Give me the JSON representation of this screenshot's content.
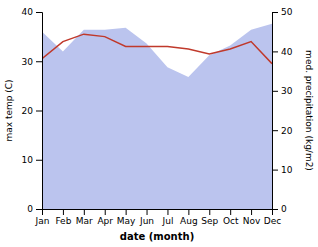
{
  "chart_data": {
    "type": "line",
    "categories": [
      "Jan",
      "Feb",
      "Mar",
      "Apr",
      "May",
      "Jun",
      "Jul",
      "Aug",
      "Sep",
      "Oct",
      "Nov",
      "Dec"
    ],
    "series": [
      {
        "type": "area",
        "axis": "y2",
        "color": "#bbc4ee",
        "values": [
          45.0,
          40.0,
          45.5,
          45.5,
          46.0,
          42.0,
          36.0,
          33.5,
          39.0,
          41.5,
          45.5,
          47.0
        ]
      },
      {
        "type": "line",
        "color": "#c0392b",
        "values": [
          30.5,
          34.0,
          35.5,
          35.0,
          33.0,
          33.0,
          33.0,
          32.5,
          31.5,
          32.5,
          34.0,
          29.5
        ]
      }
    ],
    "xlabel": "date (month)",
    "ylabel": "max temp (C)",
    "y2label": "med. precipitation (kg/m2)",
    "ylim": [
      0,
      40
    ],
    "yticks": [
      0,
      10,
      20,
      30,
      40
    ],
    "y2lim": [
      0,
      50
    ],
    "y2ticks": [
      0,
      10,
      20,
      30,
      40,
      50
    ],
    "grid": false
  }
}
